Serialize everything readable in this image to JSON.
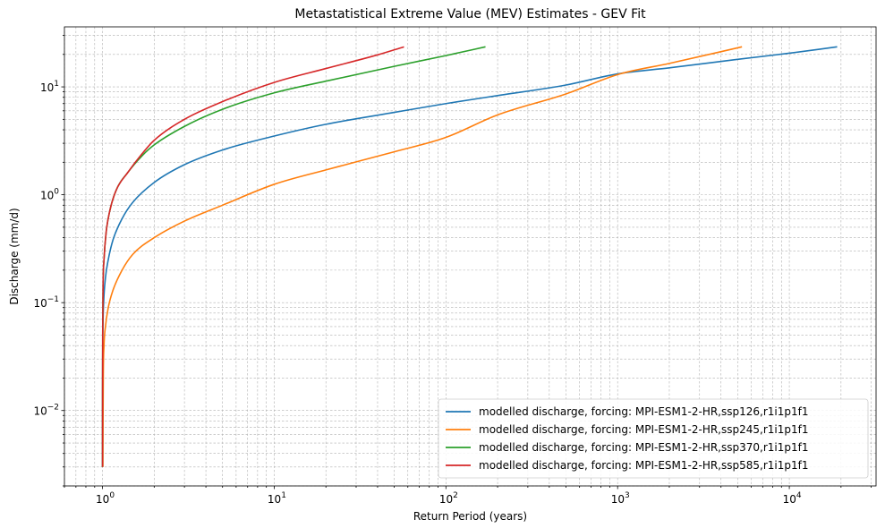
{
  "chart_data": {
    "type": "line",
    "title": "Metastatistical Extreme Value (MEV) Estimates - GEV Fit",
    "xlabel": "Return Period (years)",
    "ylabel": "Discharge (mm/d)",
    "xscale": "log",
    "yscale": "log",
    "xlim": [
      0.6,
      32000
    ],
    "ylim": [
      0.002,
      36
    ],
    "grid": true,
    "legend_position": "lower-right",
    "x_ticks": [
      {
        "value": 1,
        "base": "10",
        "exp": "0"
      },
      {
        "value": 10,
        "base": "10",
        "exp": "1"
      },
      {
        "value": 100,
        "base": "10",
        "exp": "2"
      },
      {
        "value": 1000,
        "base": "10",
        "exp": "3"
      },
      {
        "value": 10000,
        "base": "10",
        "exp": "4"
      }
    ],
    "y_ticks": [
      {
        "value": 0.01,
        "base": "10",
        "exp": "−2"
      },
      {
        "value": 0.1,
        "base": "10",
        "exp": "−1"
      },
      {
        "value": 1,
        "base": "10",
        "exp": "0"
      },
      {
        "value": 10,
        "base": "10",
        "exp": "1"
      }
    ],
    "series": [
      {
        "name": "modelled discharge, forcing: MPI-ESM1-2-HR,ssp126,r1i1p1f1",
        "color": "#1f77b4",
        "points": [
          [
            1.0,
            0.003
          ],
          [
            1.0005,
            0.01
          ],
          [
            1.002,
            0.03
          ],
          [
            1.006,
            0.06
          ],
          [
            1.015,
            0.1
          ],
          [
            1.04,
            0.17
          ],
          [
            1.08,
            0.25
          ],
          [
            1.15,
            0.38
          ],
          [
            1.3,
            0.6
          ],
          [
            1.5,
            0.85
          ],
          [
            2,
            1.3
          ],
          [
            3,
            1.9
          ],
          [
            5,
            2.6
          ],
          [
            10,
            3.5
          ],
          [
            20,
            4.5
          ],
          [
            50,
            5.8
          ],
          [
            100,
            7.0
          ],
          [
            200,
            8.3
          ],
          [
            500,
            10.4
          ],
          [
            1000,
            13.2
          ],
          [
            2000,
            15.0
          ],
          [
            5000,
            18.0
          ],
          [
            10000,
            20.5
          ],
          [
            19000,
            23.5
          ]
        ]
      },
      {
        "name": "modelled discharge, forcing: MPI-ESM1-2-HR,ssp245,r1i1p1f1",
        "color": "#ff7f0e",
        "points": [
          [
            1.005,
            0.003
          ],
          [
            1.007,
            0.008
          ],
          [
            1.01,
            0.02
          ],
          [
            1.02,
            0.04
          ],
          [
            1.04,
            0.06
          ],
          [
            1.08,
            0.09
          ],
          [
            1.15,
            0.13
          ],
          [
            1.3,
            0.2
          ],
          [
            1.5,
            0.28
          ],
          [
            2,
            0.4
          ],
          [
            3,
            0.57
          ],
          [
            5,
            0.8
          ],
          [
            10,
            1.25
          ],
          [
            20,
            1.7
          ],
          [
            50,
            2.5
          ],
          [
            100,
            3.4
          ],
          [
            200,
            5.5
          ],
          [
            500,
            8.6
          ],
          [
            1000,
            13.0
          ],
          [
            2000,
            16.5
          ],
          [
            5300,
            23.5
          ]
        ]
      },
      {
        "name": "modelled discharge, forcing: MPI-ESM1-2-HR,ssp370,r1i1p1f1",
        "color": "#2ca02c",
        "points": [
          [
            1.0,
            0.003
          ],
          [
            1.0005,
            0.015
          ],
          [
            1.003,
            0.06
          ],
          [
            1.008,
            0.15
          ],
          [
            1.02,
            0.25
          ],
          [
            1.05,
            0.45
          ],
          [
            1.1,
            0.7
          ],
          [
            1.2,
            1.1
          ],
          [
            1.4,
            1.6
          ],
          [
            1.7,
            2.3
          ],
          [
            2,
            2.9
          ],
          [
            3,
            4.3
          ],
          [
            5,
            6.2
          ],
          [
            10,
            8.8
          ],
          [
            20,
            11.3
          ],
          [
            50,
            15.5
          ],
          [
            100,
            19.5
          ],
          [
            170,
            23.5
          ]
        ]
      },
      {
        "name": "modelled discharge, forcing: MPI-ESM1-2-HR,ssp585,r1i1p1f1",
        "color": "#d62728",
        "points": [
          [
            1.0,
            0.003
          ],
          [
            1.0005,
            0.015
          ],
          [
            1.003,
            0.06
          ],
          [
            1.008,
            0.15
          ],
          [
            1.02,
            0.25
          ],
          [
            1.05,
            0.45
          ],
          [
            1.1,
            0.7
          ],
          [
            1.2,
            1.1
          ],
          [
            1.4,
            1.6
          ],
          [
            1.7,
            2.4
          ],
          [
            2,
            3.2
          ],
          [
            3,
            5.0
          ],
          [
            5,
            7.3
          ],
          [
            10,
            11.0
          ],
          [
            20,
            14.8
          ],
          [
            40,
            19.8
          ],
          [
            57,
            23.5
          ]
        ]
      }
    ]
  }
}
